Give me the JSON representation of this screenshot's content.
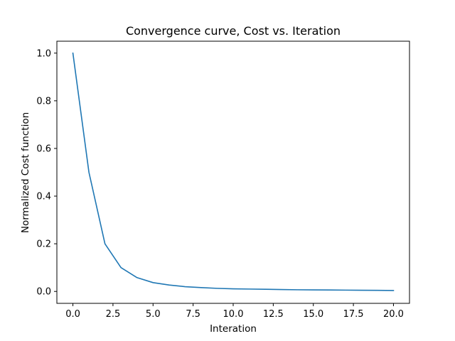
{
  "chart_data": {
    "type": "line",
    "title": "Convergence curve, Cost vs. Iteration",
    "xlabel": "Interation",
    "ylabel": "Normalized Cost function",
    "xlim": [
      -1,
      21
    ],
    "ylim": [
      -0.05,
      1.05
    ],
    "xticks": [
      0.0,
      2.5,
      5.0,
      7.5,
      10.0,
      12.5,
      15.0,
      17.5,
      20.0
    ],
    "xtick_labels": [
      "0.0",
      "2.5",
      "5.0",
      "7.5",
      "10.0",
      "12.5",
      "15.0",
      "17.5",
      "20.0"
    ],
    "yticks": [
      0.0,
      0.2,
      0.4,
      0.6,
      0.8,
      1.0
    ],
    "ytick_labels": [
      "0.0",
      "0.2",
      "0.4",
      "0.6",
      "0.8",
      "1.0"
    ],
    "grid": false,
    "legend": "none",
    "series": [
      {
        "color": "#1f77b4",
        "x": [
          0,
          1,
          2,
          3,
          4,
          5,
          6,
          7,
          8,
          9,
          10,
          11,
          12,
          13,
          14,
          15,
          16,
          17,
          18,
          19,
          20
        ],
        "y": [
          1.0,
          0.5,
          0.2,
          0.1,
          0.058,
          0.037,
          0.027,
          0.02,
          0.016,
          0.013,
          0.011,
          0.01,
          0.009,
          0.008,
          0.007,
          0.0065,
          0.006,
          0.0055,
          0.005,
          0.0045,
          0.004
        ]
      }
    ]
  }
}
